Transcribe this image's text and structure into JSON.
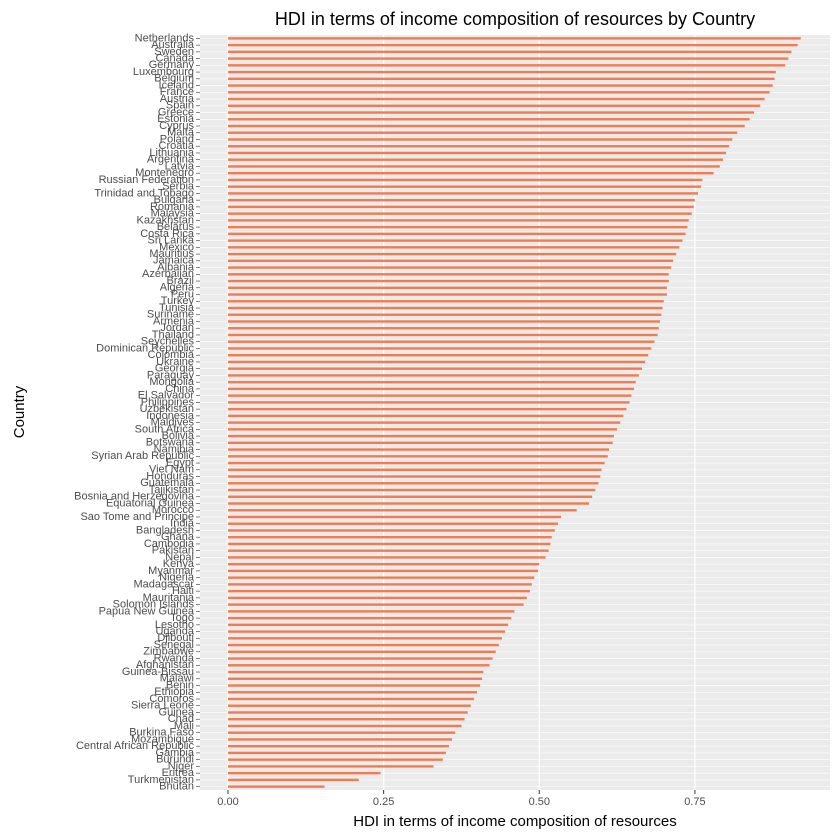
{
  "chart_data": {
    "type": "barh",
    "title": "HDI in terms of income composition of resources by Country",
    "x_label": "HDI in terms of income composition of resources",
    "y_label": "Country",
    "color": "#f37b4f",
    "xlim": [
      -0.045,
      0.967
    ],
    "xticks": [
      {
        "value": 0,
        "label": "0.00"
      },
      {
        "value": 0.25,
        "label": "0.25"
      },
      {
        "value": 0.5,
        "label": "0.50"
      },
      {
        "value": 0.75,
        "label": "0.75"
      }
    ],
    "grid": true,
    "categories": [
      "Netherlands",
      "Australia",
      "Sweden",
      "Canada",
      "Germany",
      "Luxembourg",
      "Belgium",
      "Iceland",
      "France",
      "Austria",
      "Spain",
      "Greece",
      "Estonia",
      "Cyprus",
      "Malta",
      "Poland",
      "Croatia",
      "Lithuania",
      "Argentina",
      "Latvia",
      "Montenegro",
      "Russian Federation",
      "Serbia",
      "Trinidad and Tobago",
      "Bulgaria",
      "Romania",
      "Malaysia",
      "Kazakhstan",
      "Belarus",
      "Costa Rica",
      "Sri Lanka",
      "Mexico",
      "Mauritius",
      "Jamaica",
      "Albania",
      "Azerbaijan",
      "Brazil",
      "Algeria",
      "Peru",
      "Turkey",
      "Tunisia",
      "Suriname",
      "Armenia",
      "Jordan",
      "Thailand",
      "Seychelles",
      "Dominican Republic",
      "Colombia",
      "Ukraine",
      "Georgia",
      "Paraguay",
      "Mongolia",
      "China",
      "El Salvador",
      "Philippines",
      "Uzbekistan",
      "Indonesia",
      "Maldives",
      "South Africa",
      "Bolivia",
      "Botswana",
      "Namibia",
      "Syrian Arab Republic",
      "Egypt",
      "Viet Nam",
      "Honduras",
      "Guatemala",
      "Tajikistan",
      "Bosnia and Herzegovina",
      "Equatorial Guinea",
      "Morocco",
      "Sao Tome and Principe",
      "India",
      "Bangladesh",
      "Ghana",
      "Cambodia",
      "Pakistan",
      "Nepal",
      "Kenya",
      "Myanmar",
      "Nigeria",
      "Madagascar",
      "Haiti",
      "Mauritania",
      "Solomon Islands",
      "Papua New Guinea",
      "Togo",
      "Lesotho",
      "Uganda",
      "Djibouti",
      "Senegal",
      "Zimbabwe",
      "Rwanda",
      "Afghanistan",
      "Guinea-Bissau",
      "Malawi",
      "Benin",
      "Ethiopia",
      "Comoros",
      "Sierra Leone",
      "Guinea",
      "Chad",
      "Mali",
      "Burkina Faso",
      "Mozambique",
      "Central African Republic",
      "Gambia",
      "Burundi",
      "Niger",
      "Eritrea",
      "Turkmenistan",
      "Bhutan"
    ],
    "values": [
      0.92,
      0.915,
      0.905,
      0.9,
      0.895,
      0.88,
      0.878,
      0.875,
      0.87,
      0.862,
      0.855,
      0.845,
      0.838,
      0.83,
      0.818,
      0.81,
      0.805,
      0.8,
      0.795,
      0.79,
      0.78,
      0.762,
      0.76,
      0.755,
      0.75,
      0.748,
      0.745,
      0.74,
      0.738,
      0.735,
      0.73,
      0.725,
      0.72,
      0.715,
      0.712,
      0.708,
      0.708,
      0.705,
      0.705,
      0.7,
      0.698,
      0.696,
      0.694,
      0.692,
      0.69,
      0.685,
      0.68,
      0.675,
      0.67,
      0.665,
      0.66,
      0.655,
      0.652,
      0.648,
      0.645,
      0.64,
      0.635,
      0.63,
      0.625,
      0.62,
      0.618,
      0.612,
      0.61,
      0.605,
      0.6,
      0.598,
      0.595,
      0.59,
      0.585,
      0.58,
      0.56,
      0.535,
      0.53,
      0.525,
      0.52,
      0.518,
      0.515,
      0.51,
      0.5,
      0.498,
      0.492,
      0.488,
      0.485,
      0.48,
      0.475,
      0.46,
      0.455,
      0.45,
      0.445,
      0.44,
      0.435,
      0.43,
      0.425,
      0.42,
      0.41,
      0.408,
      0.405,
      0.4,
      0.395,
      0.39,
      0.385,
      0.38,
      0.375,
      0.365,
      0.36,
      0.355,
      0.35,
      0.345,
      0.33,
      0.245,
      0.21,
      0.155
    ]
  }
}
